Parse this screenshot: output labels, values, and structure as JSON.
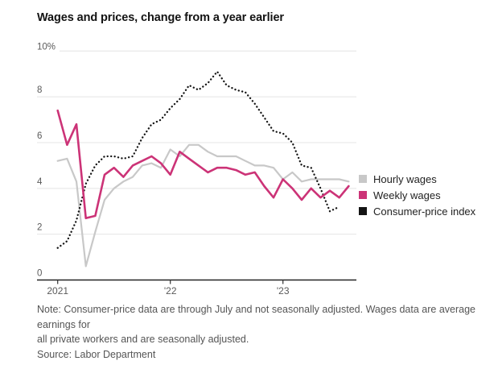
{
  "title": "Wages and prices, change from a year earlier",
  "note_lines": [
    "Note: Consumer-price data are through July and not seasonally adjusted. Wages data are average earnings for",
    "all private workers and are seasonally adjusted."
  ],
  "source": "Source: Labor Department",
  "legend": {
    "items": [
      {
        "label": "Hourly wages"
      },
      {
        "label": "Weekly wages"
      },
      {
        "label": "Consumer-price index"
      }
    ]
  },
  "chart_data": {
    "type": "line",
    "title": "Wages and prices, change from a year earlier",
    "x_unit": "month",
    "x": [
      "2021-01",
      "2021-02",
      "2021-03",
      "2021-04",
      "2021-05",
      "2021-06",
      "2021-07",
      "2021-08",
      "2021-09",
      "2021-10",
      "2021-11",
      "2021-12",
      "2022-01",
      "2022-02",
      "2022-03",
      "2022-04",
      "2022-05",
      "2022-06",
      "2022-07",
      "2022-08",
      "2022-09",
      "2022-10",
      "2022-11",
      "2022-12",
      "2023-01",
      "2023-02",
      "2023-03",
      "2023-04",
      "2023-05",
      "2023-06",
      "2023-07",
      "2023-08"
    ],
    "x_ticks": [
      {
        "index": 0,
        "label": "2021"
      },
      {
        "index": 12,
        "label": "'22"
      },
      {
        "index": 24,
        "label": "'23"
      }
    ],
    "y_ticks": [
      {
        "value": 0,
        "label": "0"
      },
      {
        "value": 2,
        "label": "2"
      },
      {
        "value": 4,
        "label": "4"
      },
      {
        "value": 6,
        "label": "6"
      },
      {
        "value": 8,
        "label": "8"
      },
      {
        "value": 10,
        "label": "10%"
      }
    ],
    "ylim": [
      0,
      10
    ],
    "grid": "horizontal",
    "legend_position": "right",
    "series": [
      {
        "name": "Hourly wages",
        "color": "#c8c8c8",
        "style": "solid",
        "values": [
          5.2,
          5.3,
          4.3,
          0.6,
          2.1,
          3.5,
          4.0,
          4.3,
          4.5,
          5.0,
          5.1,
          4.9,
          5.7,
          5.4,
          5.9,
          5.9,
          5.6,
          5.4,
          5.4,
          5.4,
          5.2,
          5.0,
          5.0,
          4.9,
          4.4,
          4.7,
          4.3,
          4.4,
          4.4,
          4.4,
          4.4,
          4.3
        ]
      },
      {
        "name": "Weekly wages",
        "color": "#cc3377",
        "style": "solid",
        "values": [
          7.4,
          5.9,
          6.8,
          2.7,
          2.8,
          4.6,
          4.9,
          4.5,
          5.0,
          5.2,
          5.4,
          5.1,
          4.6,
          5.6,
          5.3,
          5.0,
          4.7,
          4.9,
          4.9,
          4.8,
          4.6,
          4.7,
          4.1,
          3.6,
          4.4,
          4.0,
          3.5,
          4.0,
          3.6,
          3.9,
          3.6,
          4.1
        ]
      },
      {
        "name": "Consumer-price index",
        "color": "#141414",
        "style": "dotted",
        "values": [
          1.4,
          1.7,
          2.6,
          4.2,
          5.0,
          5.4,
          5.4,
          5.3,
          5.4,
          6.2,
          6.8,
          7.0,
          7.5,
          7.9,
          8.5,
          8.3,
          8.6,
          9.1,
          8.5,
          8.3,
          8.2,
          7.7,
          7.1,
          6.5,
          6.4,
          6.0,
          5.0,
          4.9,
          4.0,
          3.0,
          3.2
        ]
      }
    ]
  }
}
